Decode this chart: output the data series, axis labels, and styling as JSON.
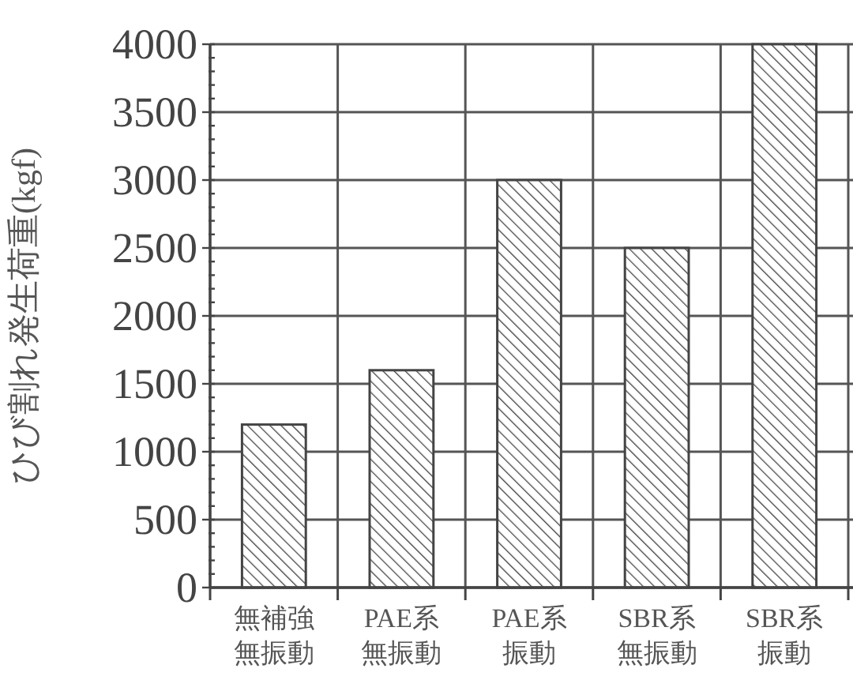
{
  "chart_data": {
    "type": "bar",
    "ylabel": "ひび割れ発生荷重(kgf)",
    "categories": [
      "無補強無振動",
      "PAE系無振動",
      "PAE系振動",
      "SBR系無振動",
      "SBR系振動"
    ],
    "values": [
      1200,
      1600,
      3000,
      2500,
      4000
    ],
    "color": "#444444",
    "ylim": [
      0,
      4000
    ],
    "yticks": [
      0,
      500,
      1000,
      1500,
      2000,
      2500,
      3000,
      3500,
      4000,
      {
        "value": 100,
        "label": null
      },
      {
        "value": 200,
        "label": null
      },
      {
        "value": 300,
        "label": null
      },
      {
        "value": 400,
        "label": null
      },
      {
        "value": 600,
        "label": null
      },
      {
        "value": 700,
        "label": null
      },
      {
        "value": 800,
        "label": null
      },
      {
        "value": 900,
        "label": null
      },
      {
        "value": 1100,
        "label": null
      },
      {
        "value": 1200,
        "label": null
      },
      {
        "value": 1300,
        "label": null
      },
      {
        "value": 1400,
        "label": null
      },
      {
        "value": 1600,
        "label": null
      },
      {
        "value": 1700,
        "label": null
      },
      {
        "value": 1800,
        "label": null
      },
      {
        "value": 1900,
        "label": null
      },
      {
        "value": 2100,
        "label": null
      },
      {
        "value": 2200,
        "label": null
      },
      {
        "value": 2300,
        "label": null
      },
      {
        "value": 2400,
        "label": null
      },
      {
        "value": 2600,
        "label": null
      },
      {
        "value": 2700,
        "label": null
      },
      {
        "value": 2800,
        "label": null
      },
      {
        "value": 2900,
        "label": null
      },
      {
        "value": 3100,
        "label": null
      },
      {
        "value": 3200,
        "label": null
      },
      {
        "value": 3300,
        "label": null
      },
      {
        "value": 3400,
        "label": null
      },
      {
        "value": 3600,
        "label": null
      },
      {
        "value": 3700,
        "label": null
      },
      {
        "value": 3800,
        "label": null
      },
      {
        "value": 3900,
        "label": null
      }
    ],
    "grid": true
  }
}
